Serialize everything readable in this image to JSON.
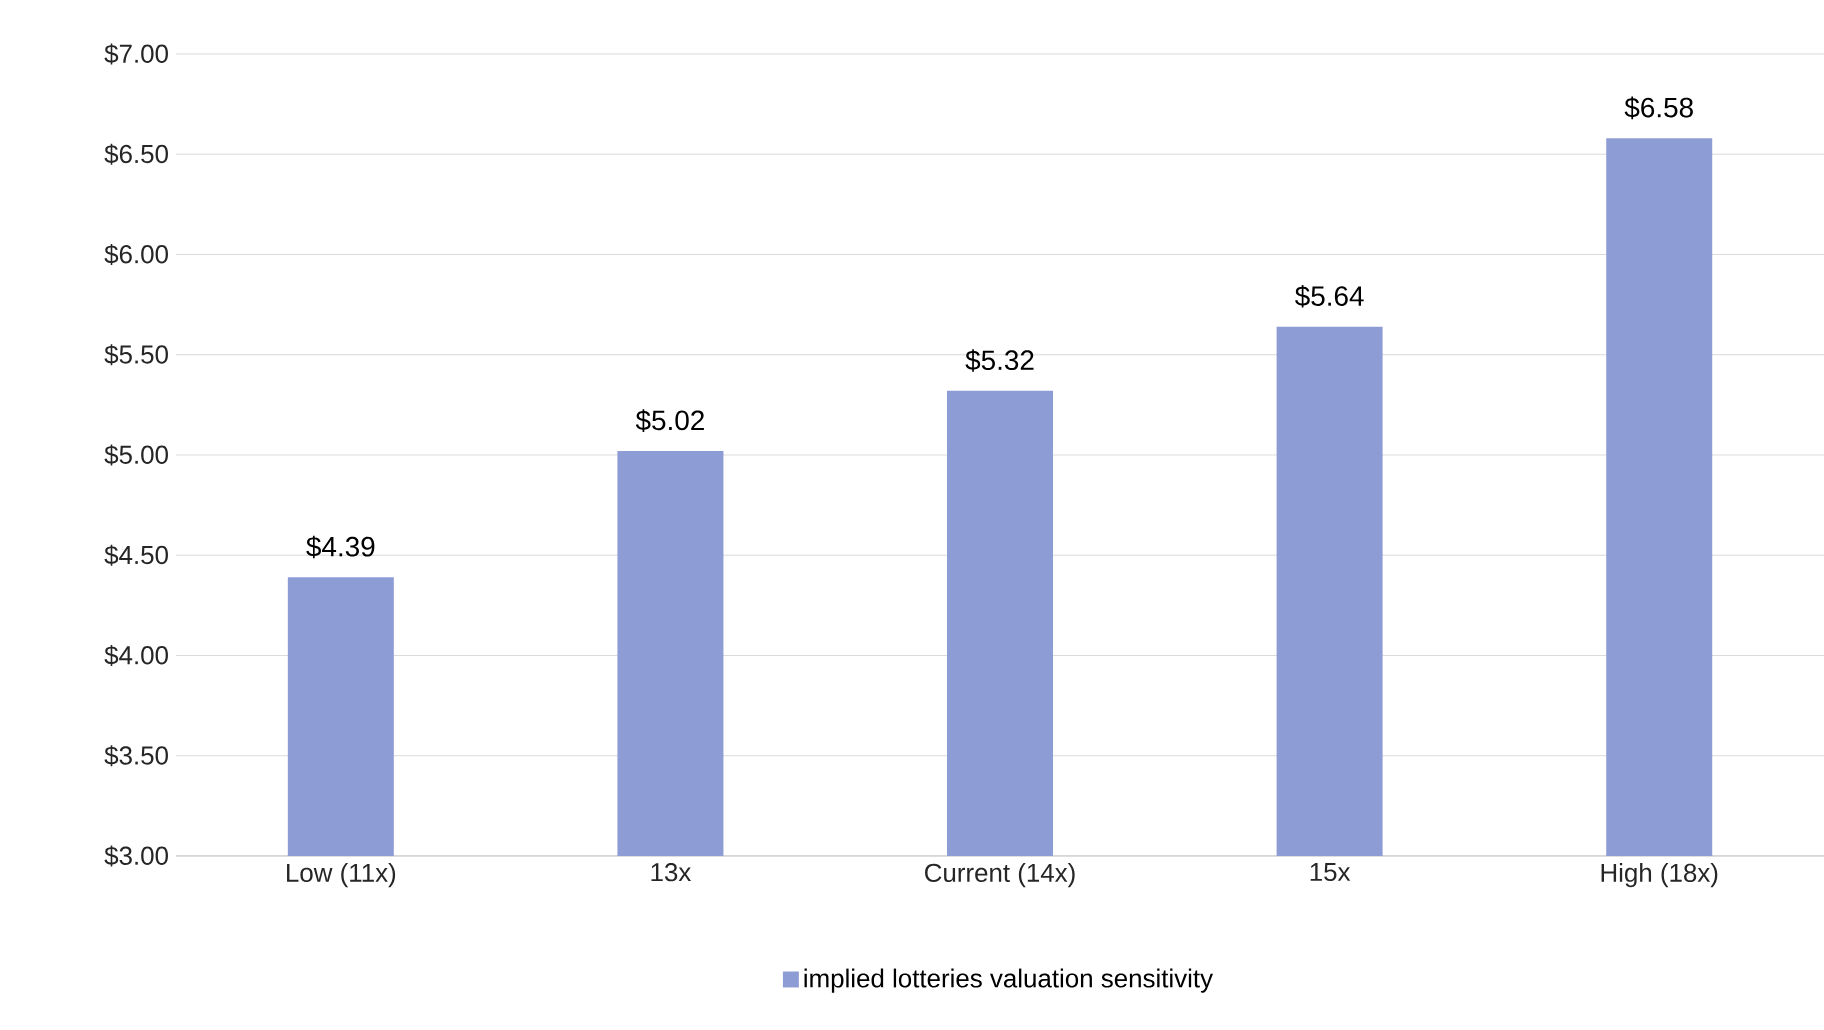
{
  "chart_data": {
    "type": "bar",
    "categories": [
      "Low (11x)",
      "13x",
      "Current (14x)",
      "15x",
      "High (18x)"
    ],
    "series": [
      {
        "name": "implied lotteries valuation sensitivity",
        "color": "#8e9cd6",
        "values": [
          4.39,
          5.02,
          5.32,
          5.64,
          6.58
        ],
        "value_labels": [
          "$4.39",
          "$5.02",
          "$5.32",
          "$5.64",
          "$6.58"
        ]
      }
    ],
    "ylim": [
      3,
      7
    ],
    "yticks": [
      {
        "value": 3,
        "label": "$3.00"
      },
      {
        "value": 3.5,
        "label": "$3.50"
      },
      {
        "value": 4,
        "label": "$4.00"
      },
      {
        "value": 4.5,
        "label": "$4.50"
      },
      {
        "value": 5,
        "label": "$5.00"
      },
      {
        "value": 5.5,
        "label": "$5.50"
      },
      {
        "value": 6,
        "label": "$6.00"
      },
      {
        "value": 6.5,
        "label": "$6.50"
      },
      {
        "value": 7,
        "label": "$7.00"
      }
    ],
    "grid": "y",
    "legend": "bottom"
  }
}
